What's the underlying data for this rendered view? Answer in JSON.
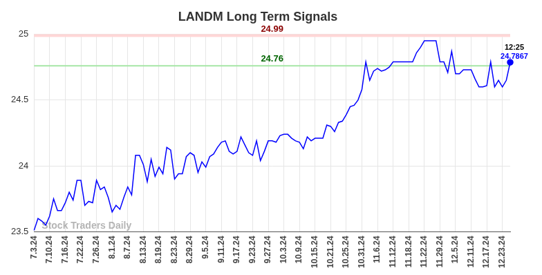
{
  "chart_data": {
    "type": "line",
    "title": "LANDM Long Term Signals",
    "categories": [
      "7.3.24",
      null,
      null,
      null,
      "7.10.24",
      null,
      null,
      null,
      "7.16.24",
      null,
      null,
      null,
      "7.22.24",
      null,
      null,
      null,
      "7.26.24",
      null,
      null,
      null,
      "8.1.24",
      null,
      null,
      null,
      "8.7.24",
      null,
      null,
      null,
      "8.13.24",
      null,
      null,
      null,
      "8.19.24",
      null,
      null,
      null,
      "8.23.24",
      null,
      null,
      null,
      "8.29.24",
      null,
      null,
      null,
      "9.5.24",
      null,
      null,
      null,
      "9.11.24",
      null,
      null,
      null,
      "9.17.24",
      null,
      null,
      null,
      "9.23.24",
      null,
      null,
      null,
      "9.27.24",
      null,
      null,
      null,
      "10.3.24",
      null,
      null,
      null,
      "10.9.24",
      null,
      null,
      null,
      "10.15.24",
      null,
      null,
      null,
      "10.21.24",
      null,
      null,
      null,
      "10.25.24",
      null,
      null,
      null,
      "10.31.24",
      null,
      null,
      null,
      "11.6.24",
      null,
      null,
      null,
      "11.12.24",
      null,
      null,
      null,
      "11.18.24",
      null,
      null,
      null,
      "11.22.24",
      null,
      null,
      null,
      "11.29.24",
      null,
      null,
      null,
      "12.5.24",
      null,
      null,
      null,
      "12.11.24",
      null,
      null,
      null,
      "12.17.24",
      null,
      null,
      null,
      "12.23.24",
      null,
      null
    ],
    "values": [
      23.51,
      23.6,
      23.58,
      23.55,
      23.62,
      23.75,
      23.66,
      23.66,
      23.72,
      23.8,
      23.74,
      23.89,
      23.89,
      23.7,
      23.73,
      23.72,
      23.89,
      23.82,
      23.84,
      23.76,
      23.65,
      23.7,
      23.67,
      23.76,
      23.84,
      23.78,
      24.08,
      24.08,
      24.01,
      23.88,
      24.05,
      23.92,
      23.99,
      23.94,
      24.14,
      24.12,
      23.9,
      23.94,
      23.94,
      24.07,
      24.1,
      24.08,
      23.95,
      24.03,
      23.99,
      24.07,
      24.09,
      24.14,
      24.18,
      24.19,
      24.11,
      24.09,
      24.11,
      24.22,
      24.16,
      24.1,
      24.08,
      24.19,
      24.04,
      24.11,
      24.19,
      24.19,
      24.18,
      24.23,
      24.24,
      24.24,
      24.21,
      24.19,
      24.18,
      24.13,
      24.22,
      24.19,
      24.21,
      24.21,
      24.21,
      24.31,
      24.3,
      24.26,
      24.33,
      24.34,
      24.39,
      24.45,
      24.46,
      24.5,
      24.58,
      24.79,
      24.65,
      24.72,
      24.74,
      24.72,
      24.73,
      24.75,
      24.79,
      24.79,
      24.79,
      24.79,
      24.79,
      24.79,
      24.86,
      24.9,
      24.95,
      24.95,
      24.95,
      24.95,
      24.79,
      24.79,
      24.71,
      24.87,
      24.7,
      24.7,
      24.73,
      24.73,
      24.73,
      24.66,
      24.6,
      24.6,
      24.61,
      24.79,
      24.6,
      24.65,
      24.6,
      24.65,
      24.7867
    ],
    "color": "#0000ff",
    "ylim": [
      23.5,
      25
    ],
    "yticks": [
      23.5,
      24,
      24.5,
      25
    ],
    "grid": true,
    "annotations": [
      {
        "value": 24.99,
        "label": "24.99",
        "color": "#ffd6d6"
      },
      {
        "value": 24.76,
        "label": "24.76",
        "color": "#a6e6a6"
      }
    ],
    "last_point_label": "12:25",
    "watermark": "Stock Traders Daily"
  }
}
